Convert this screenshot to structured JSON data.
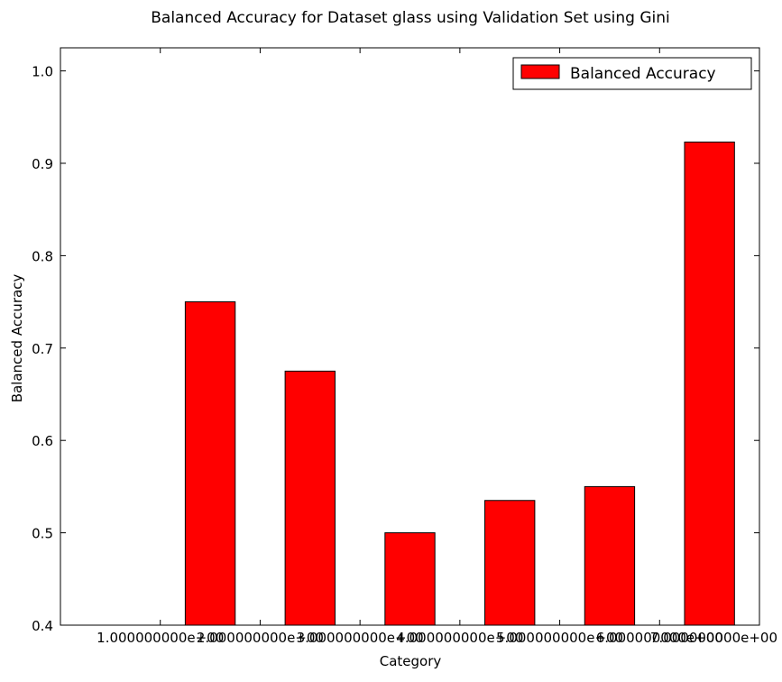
{
  "chart_data": {
    "type": "bar",
    "title": "Balanced Accuracy for Dataset glass using Validation Set using Gini",
    "xlabel": "Category",
    "ylabel": "Balanced Accuracy",
    "ylim": [
      0.4,
      1.025
    ],
    "xlim": [
      0,
      7
    ],
    "x_tick_values": [
      1,
      2,
      3,
      4,
      5,
      6,
      7
    ],
    "x_tick_labels": [
      "1.000000000e+00",
      "2.000000000e+00",
      "3.000000000e+00",
      "4.000000000e+00",
      "5.000000000e+00",
      "6.000000000e+00",
      "7.000000000e+00"
    ],
    "y_ticks": [
      0.4,
      0.5,
      0.6,
      0.7,
      0.8,
      0.9,
      1.0
    ],
    "y_tick_labels": [
      "0.4",
      "0.5",
      "0.6",
      "0.7",
      "0.8",
      "0.9",
      "1.0"
    ],
    "bar_x": [
      1.5,
      2.5,
      3.5,
      4.5,
      5.5,
      6.5
    ],
    "bar_width": 0.5,
    "values": [
      0.75,
      0.675,
      0.5,
      0.535,
      0.55,
      0.923
    ],
    "series": [
      {
        "name": "Balanced Accuracy",
        "color": "#ff0000",
        "values": [
          0.75,
          0.675,
          0.5,
          0.535,
          0.55,
          0.923
        ]
      }
    ],
    "legend": {
      "position": "top-right",
      "entries": [
        "Balanced Accuracy"
      ]
    },
    "grid": false
  }
}
